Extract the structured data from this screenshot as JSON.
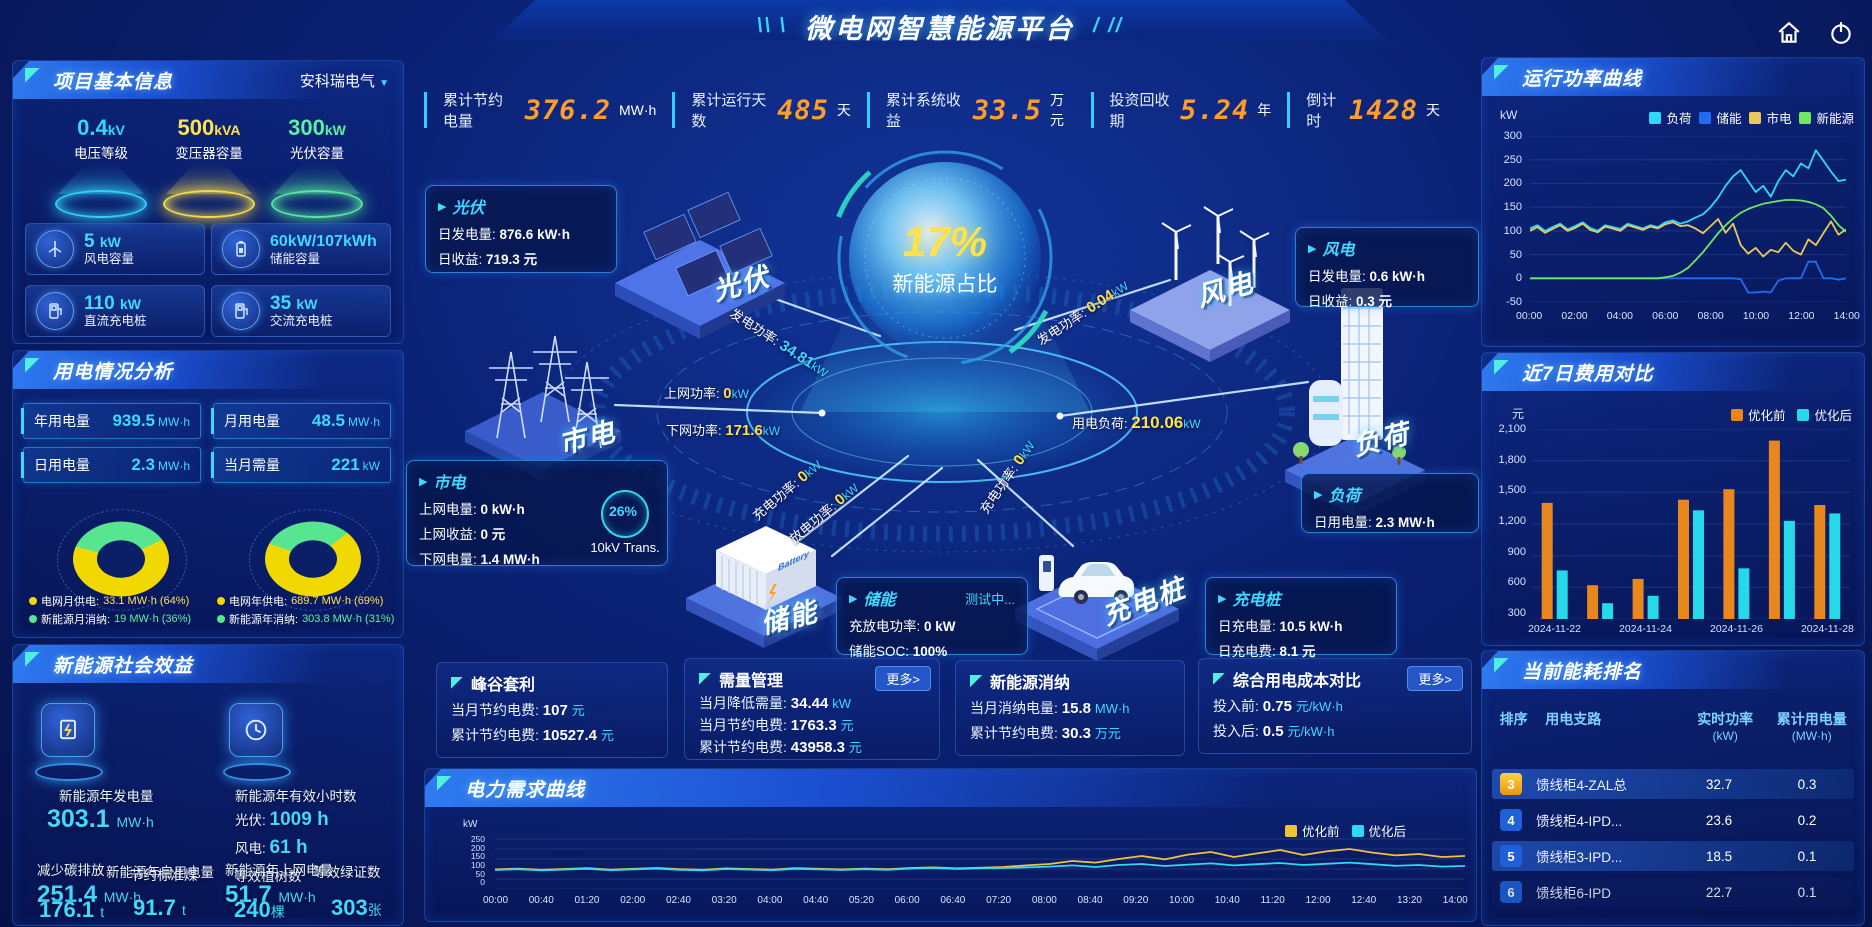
{
  "header": {
    "title": "微电网智慧能源平台",
    "deco_left": "\\\\ \\",
    "deco_right": "/ //"
  },
  "kpis": [
    {
      "label": "累计节约电量",
      "value": "376.2",
      "unit": "MW·h"
    },
    {
      "label": "累计运行天数",
      "value": "485",
      "unit": "天"
    },
    {
      "label": "累计系统收益",
      "value": "33.5",
      "unit": "万元"
    },
    {
      "label": "投资回收期",
      "value": "5.24",
      "unit": "年"
    },
    {
      "label": "倒计时",
      "value": "1428",
      "unit": "天"
    }
  ],
  "panels": {
    "project": "项目基本信息",
    "usage": "用电情况分析",
    "social": "新能源社会效益",
    "run_power": "运行功率曲线",
    "cost7": "近7日费用对比",
    "ranking": "当前能耗排名",
    "demand": "电力需求曲线"
  },
  "project": {
    "company": "安科瑞电气",
    "caret": "▼",
    "pedestals": [
      {
        "value": "0.4",
        "unit": "kV",
        "label": "电压等级"
      },
      {
        "value": "500",
        "unit": "kVA",
        "label": "变压器容量"
      },
      {
        "value": "300",
        "unit": "kW",
        "label": "光伏容量"
      }
    ],
    "cards": [
      {
        "value": "5",
        "unit": "kW",
        "label": "风电容量"
      },
      {
        "value": "60kW/107kWh",
        "unit": "",
        "label": "储能容量"
      },
      {
        "value": "110",
        "unit": "kW",
        "label": "直流充电桩"
      },
      {
        "value": "35",
        "unit": "kW",
        "label": "交流充电桩"
      }
    ]
  },
  "usage": {
    "chips": [
      {
        "label": "年用电量",
        "value": "939.5",
        "unit": "MW·h"
      },
      {
        "label": "月用电量",
        "value": "48.5",
        "unit": "MW·h"
      },
      {
        "label": "日用电量",
        "value": "2.3",
        "unit": "MW·h"
      },
      {
        "label": "当月需量",
        "value": "221",
        "unit": "kW"
      }
    ],
    "legend": [
      {
        "label": "电网月供电:",
        "value": "33.1 MW·h (64%)"
      },
      {
        "label": "电网年供电:",
        "value": "689.7 MW·h (69%)"
      },
      {
        "label": "新能源月消纳:",
        "value": "19 MW·h (36%)"
      },
      {
        "label": "新能源年消纳:",
        "value": "303.8 MW·h (31%)"
      }
    ]
  },
  "social": {
    "gen": {
      "label": "新能源年发电量",
      "value": "303.1",
      "unit": "MW·h"
    },
    "hours": {
      "label": "新能源年有效小时数",
      "pv_label": "光伏:",
      "pv_value": "1009 h",
      "wind_label": "风电:",
      "wind_value": "61 h"
    },
    "self_use": {
      "label": "新能源年自用电量",
      "value": "251.4",
      "unit": "MW·h"
    },
    "to_grid": {
      "label": "新能源年上网电量",
      "value": "51.7",
      "unit": "MW·h"
    },
    "co2": {
      "label": "减少碳排放",
      "value": "176.1",
      "unit": "t"
    },
    "coal": {
      "label": "节约标准煤",
      "value": "91.7",
      "unit": "t"
    },
    "trees": {
      "label": "等效植树数",
      "value": "240",
      "unit": "棵"
    },
    "certs": {
      "label": "等效绿证数",
      "value": "303",
      "unit": "张"
    }
  },
  "center": {
    "percent": "17%",
    "caption": "新能源占比",
    "transformer": {
      "percent": "26%",
      "label": "10kV Trans."
    }
  },
  "nodes": {
    "pv": "光伏",
    "wind": "风电",
    "grid": "市电",
    "load": "负荷",
    "storage": "储能",
    "pile": "充电桩"
  },
  "tooltips": {
    "pv": {
      "title": "光伏",
      "rows": [
        {
          "label": "日发电量:",
          "value": "876.6 kW·h"
        },
        {
          "label": "日收益:",
          "value": "719.3 元"
        }
      ]
    },
    "wind": {
      "title": "风电",
      "rows": [
        {
          "label": "日发电量:",
          "value": "0.6 kW·h"
        },
        {
          "label": "日收益:",
          "value": "0.3 元"
        }
      ]
    },
    "grid": {
      "title": "市电",
      "rows": [
        {
          "label": "上网电量:",
          "value": "0 kW·h"
        },
        {
          "label": "上网收益:",
          "value": "0 元"
        },
        {
          "label": "下网电量:",
          "value": "1.4 MW·h"
        }
      ]
    },
    "storage": {
      "title": "储能",
      "status": "测试中...",
      "rows": [
        {
          "label": "充放电功率:",
          "value": "0 kW"
        },
        {
          "label": "储能SOC:",
          "value": "100%"
        }
      ]
    },
    "load": {
      "title": "负荷",
      "rows": [
        {
          "label": "日用电量:",
          "value": "2.3 MW·h"
        }
      ]
    },
    "pile": {
      "title": "充电桩",
      "rows": [
        {
          "label": "日充电量:",
          "value": "10.5 kW·h"
        },
        {
          "label": "日充电费:",
          "value": "8.1 元"
        }
      ]
    }
  },
  "flows": {
    "pv_gen": {
      "label": "发电功率:",
      "value": "34.81",
      "unit": "kW"
    },
    "wind_gen": {
      "label": "发电功率:",
      "value": "0.04",
      "unit": "kW"
    },
    "grid_up": {
      "label": "上网功率:",
      "value": "0",
      "unit": "kW"
    },
    "grid_down": {
      "label": "下网功率:",
      "value": "171.6",
      "unit": "kW"
    },
    "load_power": {
      "label": "用电负荷:",
      "value": "210.06",
      "unit": "kW"
    },
    "storage_charge": {
      "label": "充电功率:",
      "value": "0",
      "unit": "kW"
    },
    "storage_discharge": {
      "label": "放电功率:",
      "value": "0",
      "unit": "kW"
    },
    "pile_charge": {
      "label": "充电功率:",
      "value": "0",
      "unit": "kW"
    }
  },
  "bottom_cards": [
    {
      "title": "峰谷套利",
      "rows": [
        {
          "label": "当月节约电费:",
          "value": "107",
          "unit": "元"
        },
        {
          "label": "累计节约电费:",
          "value": "10527.4",
          "unit": "元"
        }
      ]
    },
    {
      "title": "需量管理",
      "more": "更多>",
      "rows": [
        {
          "label": "当月降低需量:",
          "value": "34.44",
          "unit": "kW"
        },
        {
          "label": "当月节约电费:",
          "value": "1763.3",
          "unit": "元"
        },
        {
          "label": "累计节约电费:",
          "value": "43958.3",
          "unit": "元"
        }
      ]
    },
    {
      "title": "新能源消纳",
      "rows": [
        {
          "label": "当月消纳电量:",
          "value": "15.8",
          "unit": "MW·h"
        },
        {
          "label": "累计节约电费:",
          "value": "30.3",
          "unit": "万元"
        }
      ]
    },
    {
      "title": "综合用电成本对比",
      "more": "更多>",
      "rows": [
        {
          "label": "投入前:",
          "value": "0.75",
          "unit": "元/kW·h"
        },
        {
          "label": "投入后:",
          "value": "0.5",
          "unit": "元/kW·h"
        }
      ]
    }
  ],
  "ranking": {
    "headers": [
      "排序",
      "用电支路",
      "实时功率",
      "累计用电量"
    ],
    "header_units": [
      "",
      "",
      "(kW)",
      "(MW·h)"
    ],
    "rows": [
      {
        "rank": "3",
        "branch": "馈线柜4-ZAL总",
        "power": "32.7",
        "energy": "0.3"
      },
      {
        "rank": "4",
        "branch": "馈线柜4-IPD...",
        "power": "23.6",
        "energy": "0.2"
      },
      {
        "rank": "5",
        "branch": "馈线柜3-IPD...",
        "power": "18.5",
        "energy": "0.1"
      },
      {
        "rank": "6",
        "branch": "馈线柜6-IPD",
        "power": "22.7",
        "energy": "0.1"
      }
    ]
  },
  "chart_data": [
    {
      "id": "run_power_curve",
      "type": "line",
      "title": "运行功率曲线",
      "ylabel": "kW",
      "ylim": [
        -50,
        300
      ],
      "yticks": [
        300,
        250,
        200,
        150,
        100,
        50,
        0,
        -50
      ],
      "xticks": [
        "00:00",
        "02:00",
        "04:00",
        "06:00",
        "08:00",
        "10:00",
        "12:00",
        "14:00"
      ],
      "legend_position": "top",
      "grid": true,
      "series": [
        {
          "name": "负荷",
          "color": "#2fd9f5",
          "values": [
            105,
            112,
            100,
            108,
            115,
            103,
            110,
            118,
            106,
            100,
            112,
            108,
            104,
            115,
            110,
            105,
            112,
            108,
            118,
            122,
            115,
            120,
            128,
            135,
            150,
            170,
            195,
            215,
            228,
            205,
            182,
            195,
            172,
            205,
            228,
            215,
            242,
            232,
            270,
            248,
            225,
            205,
            208
          ]
        },
        {
          "name": "储能",
          "color": "#1f6cf0",
          "values": [
            0,
            0,
            0,
            0,
            0,
            0,
            0,
            0,
            0,
            0,
            0,
            0,
            0,
            0,
            0,
            0,
            0,
            0,
            0,
            0,
            0,
            0,
            0,
            0,
            0,
            0,
            0,
            0,
            -2,
            -30,
            -30,
            -28,
            -30,
            -5,
            0,
            0,
            0,
            35,
            35,
            0,
            0,
            -3,
            0
          ]
        },
        {
          "name": "市电",
          "color": "#e9c95b",
          "values": [
            100,
            108,
            96,
            104,
            112,
            100,
            106,
            115,
            102,
            97,
            109,
            105,
            100,
            112,
            107,
            102,
            109,
            105,
            114,
            118,
            110,
            112,
            105,
            95,
            110,
            125,
            96,
            115,
            70,
            52,
            64,
            46,
            60,
            55,
            75,
            58,
            50,
            82,
            70,
            95,
            120,
            92,
            103
          ]
        },
        {
          "name": "新能源",
          "color": "#6fe75f",
          "values": [
            0,
            0,
            0,
            0,
            0,
            0,
            0,
            0,
            0,
            0,
            0,
            0,
            0,
            0,
            0,
            0,
            0,
            0,
            2,
            5,
            12,
            22,
            38,
            55,
            75,
            95,
            112,
            126,
            138,
            146,
            152,
            157,
            160,
            163,
            165,
            165,
            164,
            161,
            156,
            148,
            132,
            112,
            98
          ]
        }
      ]
    },
    {
      "id": "cost_compare_7d",
      "type": "bar",
      "title": "近7日费用对比",
      "ylabel": "元",
      "ylim": [
        300,
        2100
      ],
      "yticks": [
        "2,100",
        "1,800",
        "1,500",
        "1,200",
        "900",
        "600",
        "300"
      ],
      "categories": [
        "2024-11-22",
        "2024-11-23",
        "2024-11-24",
        "2024-11-25",
        "2024-11-26",
        "2024-11-27",
        "2024-11-28"
      ],
      "xticks_shown": [
        "2024-11-22",
        "2024-11-24",
        "2024-11-26",
        "2024-11-28"
      ],
      "series": [
        {
          "name": "优化前",
          "color": "#e8871e",
          "values": [
            1400,
            620,
            680,
            1430,
            1530,
            1990,
            1380
          ]
        },
        {
          "name": "优化后",
          "color": "#27d8e8",
          "values": [
            760,
            450,
            520,
            1330,
            780,
            1230,
            1300
          ]
        }
      ]
    },
    {
      "id": "demand_curve",
      "type": "line",
      "title": "电力需求曲线",
      "ylabel": "kW",
      "ylim": [
        0,
        260
      ],
      "yticks": [
        250,
        200,
        150,
        100,
        50,
        0
      ],
      "xticks": [
        "00:00",
        "00:40",
        "01:20",
        "02:00",
        "02:40",
        "03:20",
        "04:00",
        "04:40",
        "05:20",
        "06:00",
        "06:40",
        "07:20",
        "08:00",
        "08:40",
        "09:20",
        "10:00",
        "10:40",
        "11:20",
        "12:00",
        "12:40",
        "13:20",
        "14:00"
      ],
      "series": [
        {
          "name": "优化前",
          "color": "#f0c23c",
          "values": [
            98,
            102,
            96,
            100,
            104,
            97,
            101,
            105,
            99,
            96,
            103,
            100,
            97,
            104,
            101,
            98,
            102,
            99,
            105,
            108,
            103,
            106,
            110,
            118,
            125,
            140,
            132,
            150,
            165,
            148,
            172,
            185,
            160,
            178,
            195,
            170,
            188,
            200,
            182,
            168,
            175,
            160,
            165
          ]
        },
        {
          "name": "优化后",
          "color": "#2fd9f5",
          "values": [
            95,
            99,
            93,
            97,
            101,
            94,
            98,
            102,
            96,
            93,
            100,
            97,
            94,
            101,
            98,
            95,
            99,
            96,
            102,
            105,
            100,
            103,
            105,
            108,
            112,
            118,
            110,
            120,
            125,
            115,
            122,
            128,
            118,
            124,
            130,
            120,
            126,
            132,
            124,
            116,
            120,
            112,
            115
          ]
        }
      ]
    },
    {
      "id": "supply_donut_month",
      "type": "pie",
      "rotate": 65,
      "slices": [
        {
          "label": "电网月供电",
          "display": "33.1 MW·h (64%)",
          "pct": 64,
          "color": "#f0d800"
        },
        {
          "label": "新能源月消纳",
          "display": "19 MW·h (36%)",
          "pct": 36,
          "color": "#57e68f"
        }
      ]
    },
    {
      "id": "supply_donut_year",
      "type": "pie",
      "rotate": 52,
      "slices": [
        {
          "label": "电网年供电",
          "display": "689.7 MW·h (69%)",
          "pct": 69,
          "color": "#f0d800"
        },
        {
          "label": "新能源年消纳",
          "display": "303.8 MW·h (31%)",
          "pct": 31,
          "color": "#57e68f"
        }
      ]
    }
  ]
}
